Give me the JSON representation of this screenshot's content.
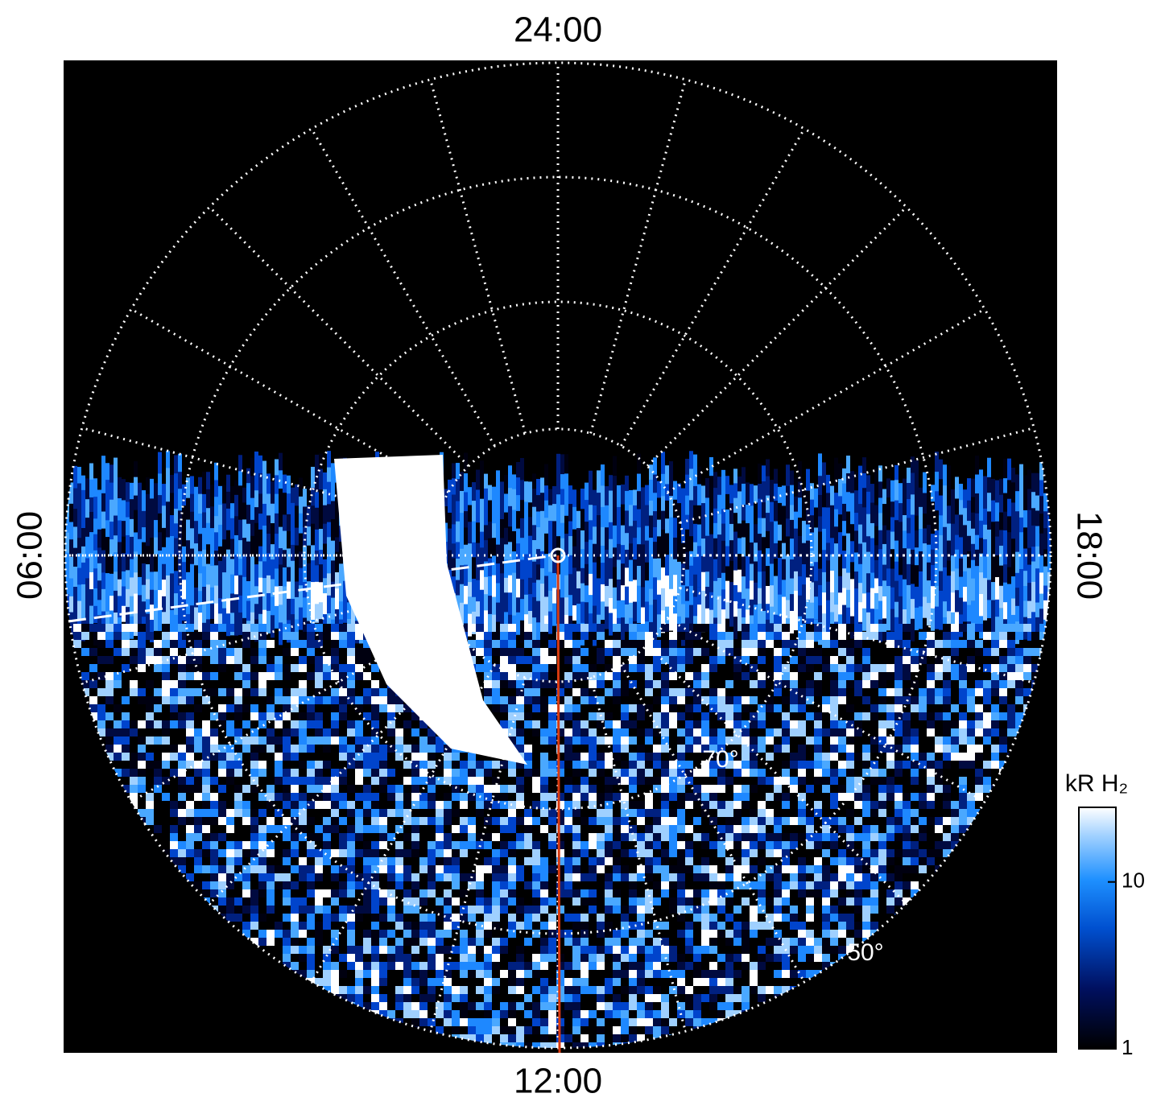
{
  "labels": {
    "top": "24:00",
    "bottom": "12:00",
    "left": "06:00",
    "right": "18:00"
  },
  "latitude_labels": [
    "70°",
    "50°"
  ],
  "colorbar": {
    "title": "kR H₂",
    "scale": "log",
    "lim": [
      1,
      28
    ],
    "ticks": [
      1,
      10
    ]
  }
}
